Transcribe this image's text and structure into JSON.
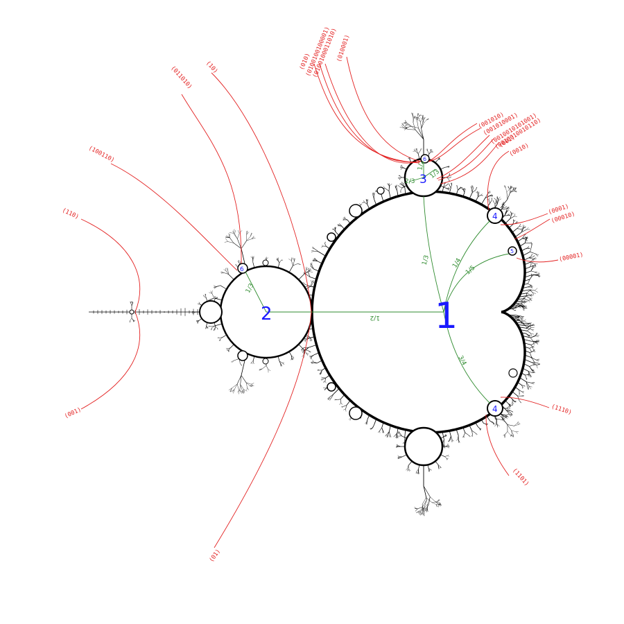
{
  "colors": {
    "external_ray": "#e32020",
    "internal_ray": "#2e8b2e",
    "period_label": "#1a1aff",
    "set_boundary": "#000000",
    "background": "#ffffff"
  },
  "period_labels": {
    "main_cardioid": "1",
    "period2_bulb": "2",
    "period3_upper_bulb": "3",
    "period4_upper_bulb": "4",
    "period4_lower_bulb": "4",
    "period5_bulb": "5",
    "period6_left_bulb": "6",
    "period6_upper_bulb": "6"
  },
  "internal_angles": {
    "main_half": "1/2",
    "main_third": "1/3",
    "main_quarter": "1/4",
    "main_fifth": "1/5",
    "main_three_quarter": "3/4",
    "bulb2_third": "1/3",
    "bulb3_a": "1/2",
    "bulb3_b": "1/3",
    "bulb3_c": "2/3"
  },
  "external_rays": [
    "(110)",
    "(001)",
    "(100110)",
    "(011010)",
    "(10)",
    "(01)",
    "(010)",
    "(0100100100001)",
    "(0100100011010)",
    "(010001)",
    "(001010)",
    "(001010001)",
    "(0010010101001)",
    "(0010010010110)",
    "(001)",
    "(0010)",
    "(0001)",
    "(00010)",
    "(00001)",
    "(1110)",
    "(1101)"
  ]
}
